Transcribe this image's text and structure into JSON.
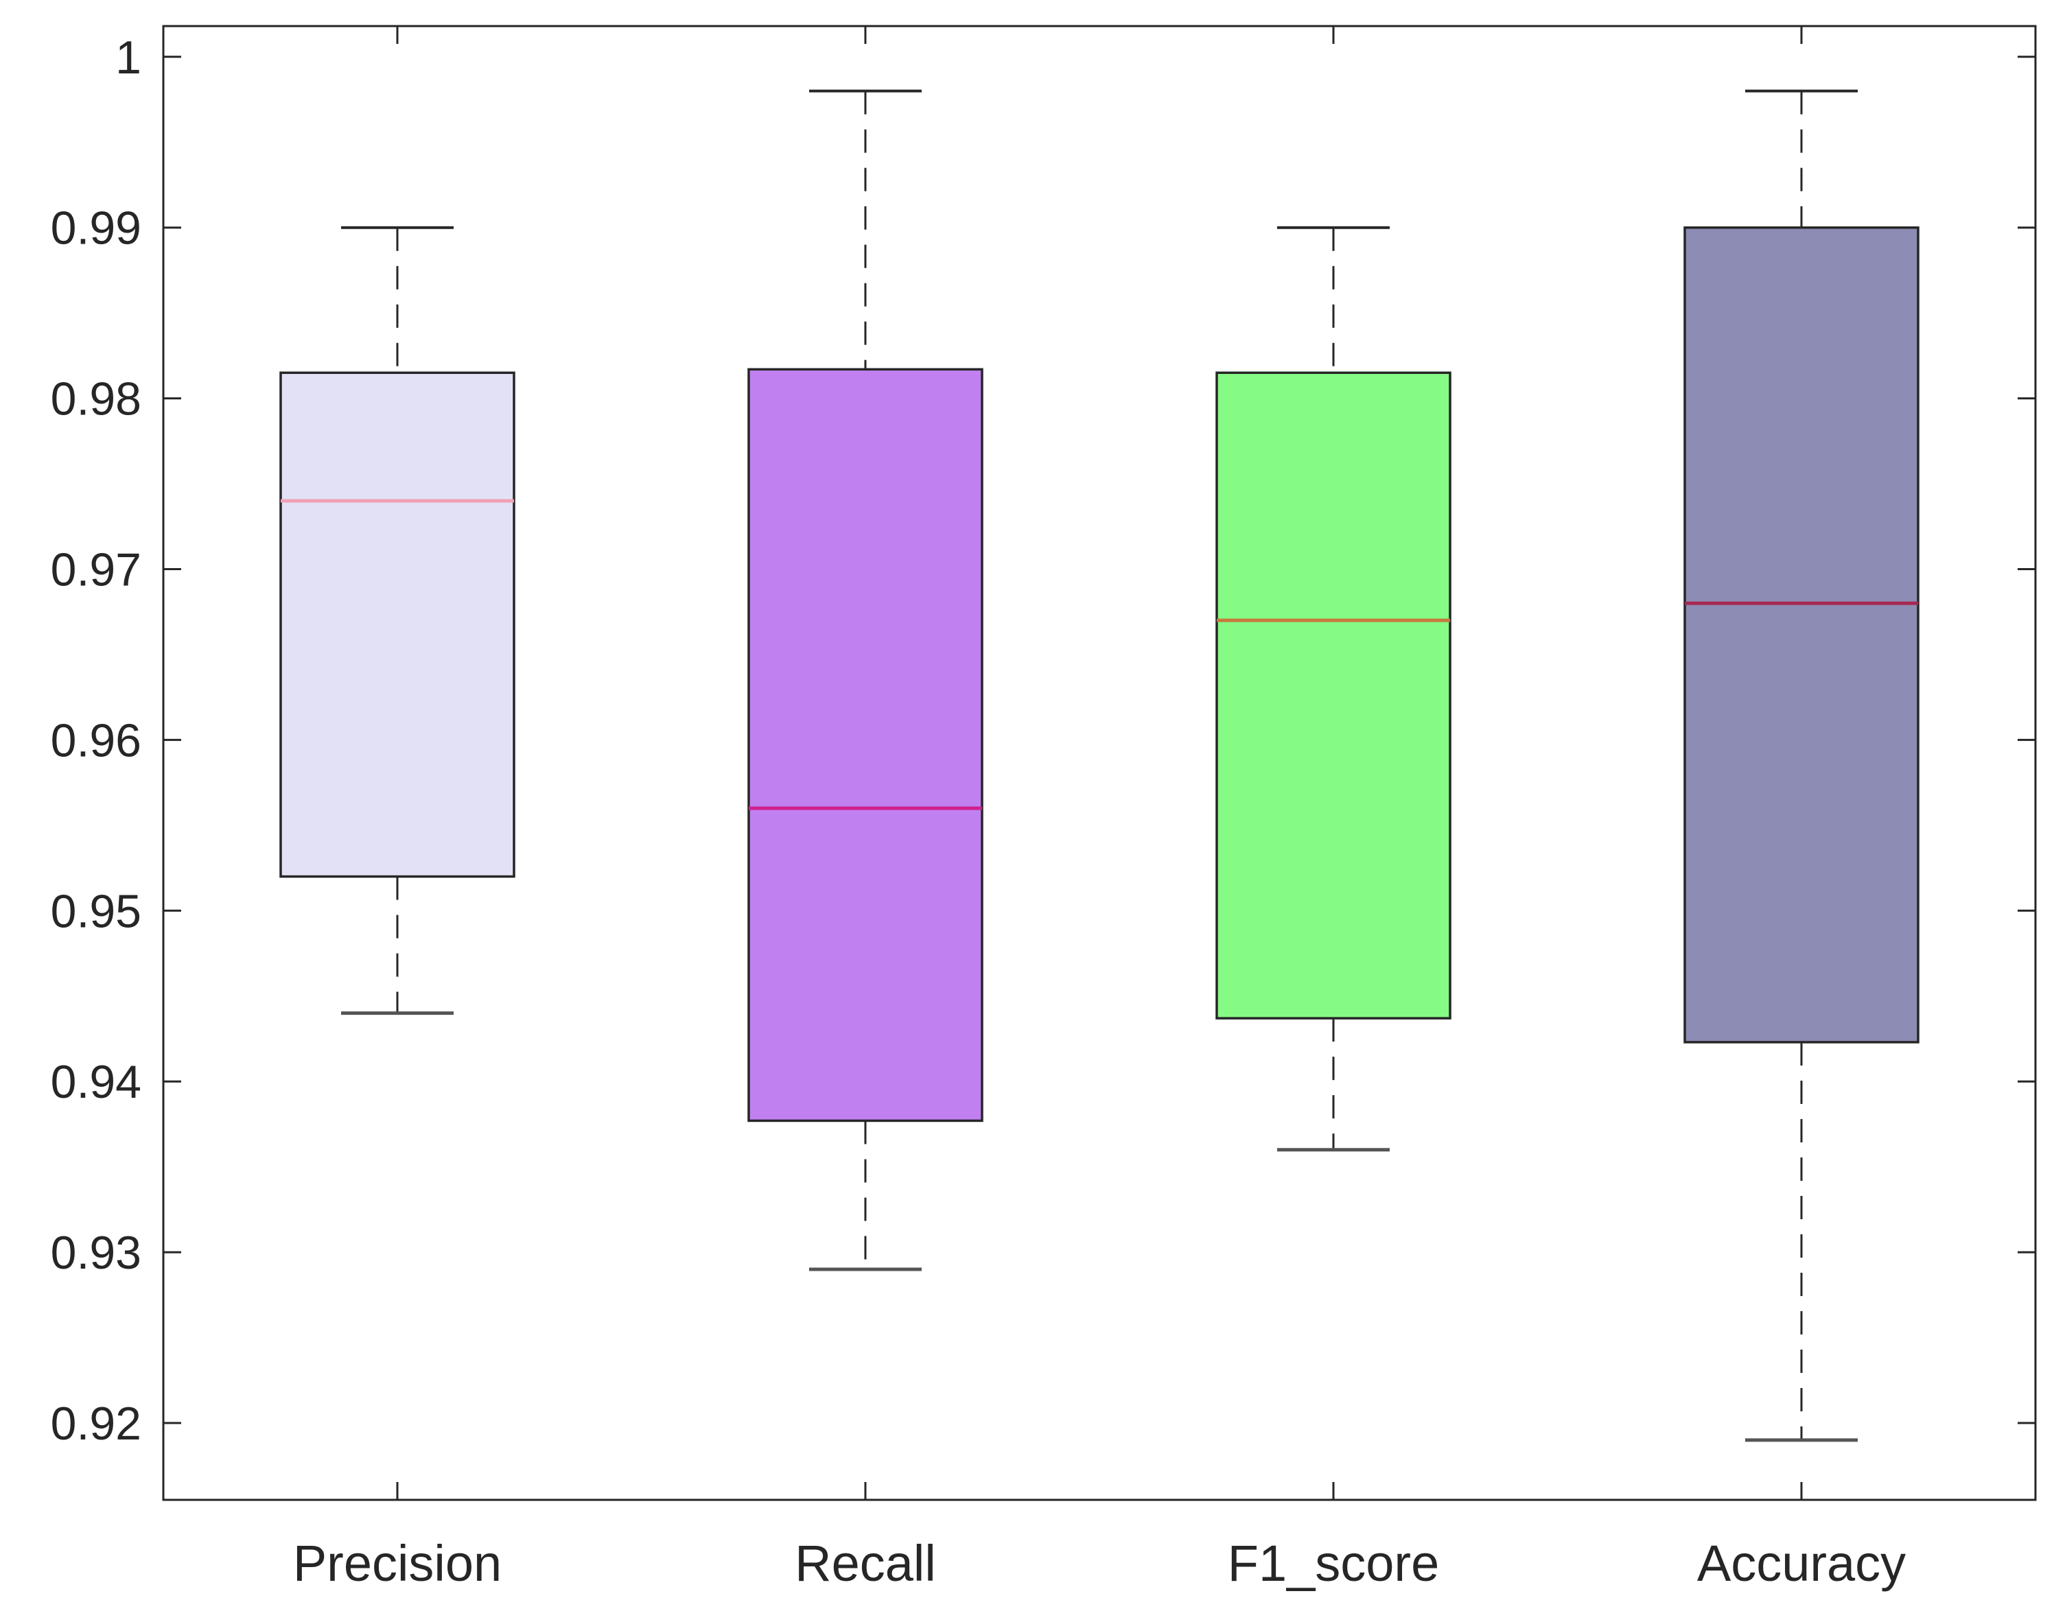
{
  "chart_data": {
    "type": "boxplot",
    "categories": [
      "Precision",
      "Recall",
      "F1_score",
      "Accuracy"
    ],
    "boxes": [
      {
        "category": "Precision",
        "min": 0.944,
        "q1": 0.952,
        "median": 0.974,
        "q3": 0.9815,
        "max": 0.99,
        "fill": "#e3e1f6",
        "median_color": "#f0a0b4"
      },
      {
        "category": "Recall",
        "min": 0.929,
        "q1": 0.9377,
        "median": 0.956,
        "q3": 0.9817,
        "max": 0.998,
        "fill": "#c080f0",
        "median_color": "#d0208c"
      },
      {
        "category": "F1_score",
        "min": 0.936,
        "q1": 0.9437,
        "median": 0.967,
        "q3": 0.9815,
        "max": 0.99,
        "fill": "#85fa85",
        "median_color": "#c8783c"
      },
      {
        "category": "Accuracy",
        "min": 0.919,
        "q1": 0.9423,
        "median": 0.968,
        "q3": 0.99,
        "max": 0.998,
        "fill": "#8c8cb4",
        "median_color": "#a82850"
      }
    ],
    "y_ticks": [
      "0.92",
      "0.93",
      "0.94",
      "0.95",
      "0.96",
      "0.97",
      "0.98",
      "0.99",
      "1"
    ],
    "ylim": [
      0.9155,
      1.0018
    ],
    "grid": false,
    "whisker_style": "dashed"
  }
}
